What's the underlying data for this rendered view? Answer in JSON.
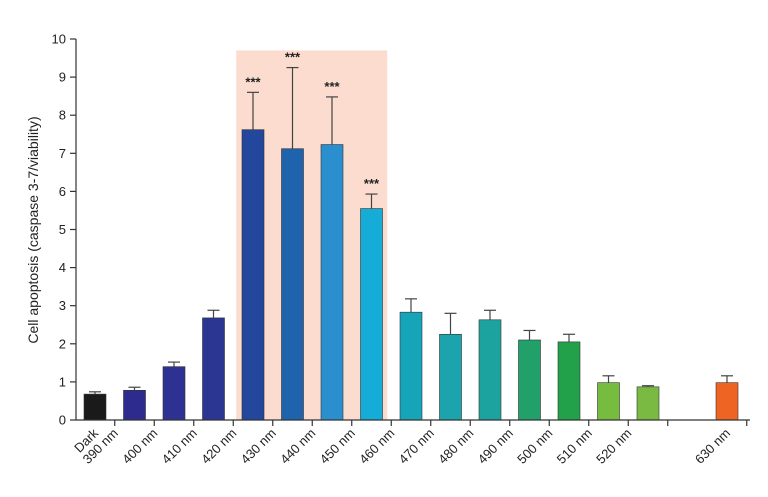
{
  "chart_data": {
    "type": "bar",
    "title": "",
    "ylabel": "Cell apoptosis (caspase 3-7/viability)",
    "xlabel": "",
    "ylim": [
      0,
      10
    ],
    "yticks": [
      0,
      1,
      2,
      3,
      4,
      5,
      6,
      7,
      8,
      9,
      10
    ],
    "grid": false,
    "highlight_range": [
      "420 nm",
      "450 nm"
    ],
    "highlight_color": "#fbdccf",
    "categories": [
      "Dark",
      "390 nm",
      "400 nm",
      "410 nm",
      "420 nm",
      "430 nm",
      "440 nm",
      "450 nm",
      "460 nm",
      "470 nm",
      "480 nm",
      "490 nm",
      "500 nm",
      "510 nm",
      "520 nm",
      "630 nm"
    ],
    "values": [
      0.68,
      0.78,
      1.4,
      2.68,
      7.62,
      7.12,
      7.23,
      5.55,
      2.83,
      2.25,
      2.63,
      2.1,
      2.05,
      0.98,
      0.87,
      0.98
    ],
    "errors": [
      0.06,
      0.08,
      0.12,
      0.2,
      0.98,
      2.13,
      1.25,
      0.38,
      0.35,
      0.55,
      0.25,
      0.25,
      0.2,
      0.18,
      0.03,
      0.18
    ],
    "colors": [
      "#1a1a1a",
      "#2d2c8e",
      "#2c3192",
      "#2b3592",
      "#22479c",
      "#1f63ad",
      "#2b8fcf",
      "#15acd8",
      "#16a4b8",
      "#1ba4ae",
      "#1da39f",
      "#21a06a",
      "#22a04a",
      "#76bc3f",
      "#7aba43",
      "#ee6523"
    ],
    "significance": [
      "",
      "",
      "",
      "",
      "***",
      "***",
      "***",
      "***",
      "",
      "",
      "",
      "",
      "",
      "",
      "",
      ""
    ]
  }
}
